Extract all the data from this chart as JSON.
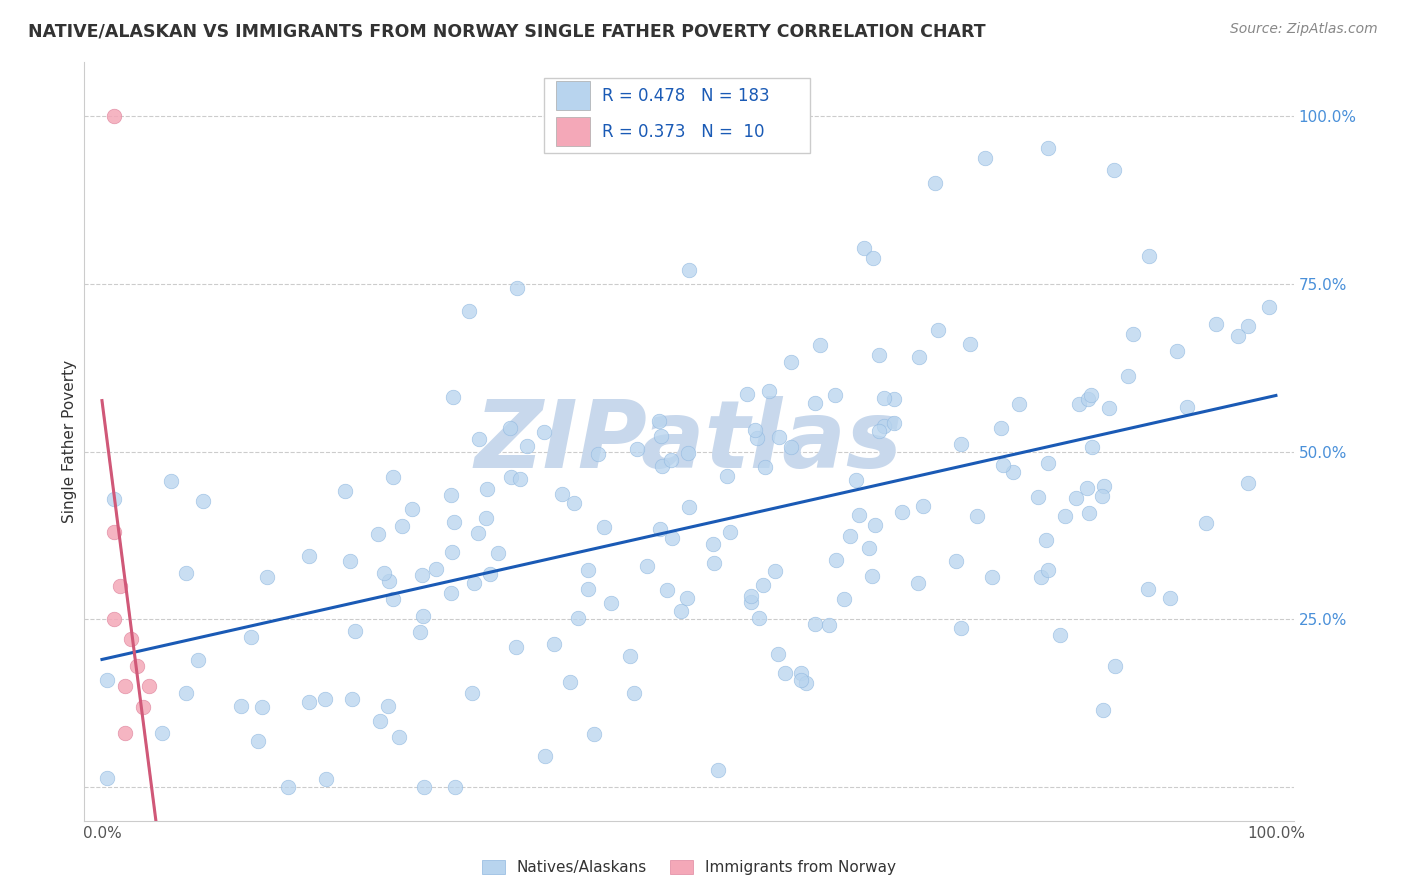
{
  "title": "NATIVE/ALASKAN VS IMMIGRANTS FROM NORWAY SINGLE FATHER POVERTY CORRELATION CHART",
  "source": "Source: ZipAtlas.com",
  "ylabel": "Single Father Poverty",
  "xlabel": "",
  "blue_R": 0.478,
  "blue_N": 183,
  "pink_R": 0.373,
  "pink_N": 10,
  "blue_color": "#b8d4ee",
  "blue_edge_color": "#90b8e0",
  "blue_line_color": "#1a5ab5",
  "pink_color": "#f4a8b8",
  "pink_edge_color": "#e088a0",
  "pink_line_color": "#d05878",
  "pink_dash_color": "#e8a0b8",
  "watermark_color": "#c8d8ec",
  "legend_label_blue": "Natives/Alaskans",
  "legend_label_pink": "Immigrants from Norway",
  "legend_text_color": "#1a5ab5",
  "legend_label_color": "#333333",
  "title_color": "#333333",
  "source_color": "#888888",
  "ylabel_color": "#333333",
  "tick_color_y": "#4a90d9",
  "tick_color_x": "#555555",
  "grid_color": "#cccccc",
  "pink_scatter_x": [
    0.01,
    0.01,
    0.01,
    0.015,
    0.02,
    0.02,
    0.025,
    0.03,
    0.035,
    0.04
  ],
  "pink_scatter_y": [
    1.0,
    0.38,
    0.25,
    0.3,
    0.15,
    0.08,
    0.22,
    0.18,
    0.12,
    0.15
  ]
}
